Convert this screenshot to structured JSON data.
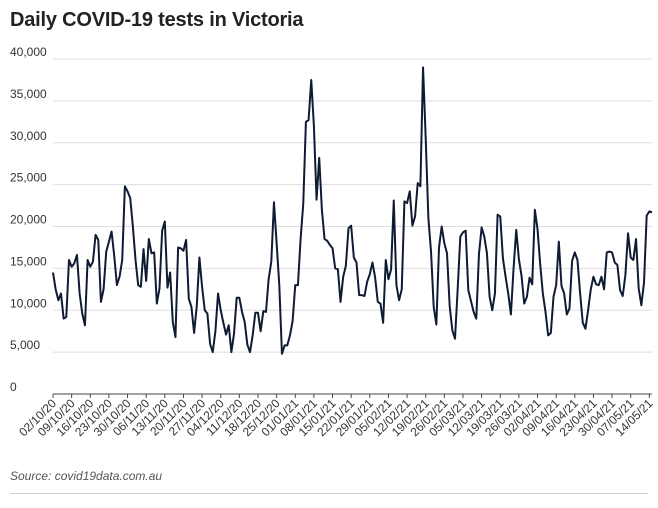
{
  "chart_data": {
    "type": "line",
    "title": "Daily COVID-19 tests in Victoria",
    "source": "Source: covid19data.com.au",
    "xlabel": "",
    "ylabel": "",
    "ylim": [
      0,
      40000
    ],
    "yticks": [
      {
        "value": 0,
        "label": "0"
      },
      {
        "value": 5000,
        "label": "5,000"
      },
      {
        "value": 10000,
        "label": "10,000"
      },
      {
        "value": 15000,
        "label": "15,000"
      },
      {
        "value": 20000,
        "label": "20,000"
      },
      {
        "value": 25000,
        "label": "25,000"
      },
      {
        "value": 30000,
        "label": "30,000"
      },
      {
        "value": 35000,
        "label": "35,000"
      },
      {
        "value": 40000,
        "label": "40,000"
      }
    ],
    "xticks": [
      "02/10/20",
      "09/10/20",
      "16/10/20",
      "23/10/20",
      "30/10/20",
      "06/11/20",
      "13/11/20",
      "20/11/20",
      "27/11/20",
      "04/12/20",
      "11/12/20",
      "18/12/20",
      "25/12/20",
      "01/01/21",
      "08/01/21",
      "15/01/21",
      "22/01/21",
      "29/01/21",
      "05/02/21",
      "12/02/21",
      "19/02/21",
      "26/02/21",
      "05/03/21",
      "12/03/21",
      "19/03/21",
      "26/03/21",
      "02/04/21",
      "09/04/21",
      "16/04/21",
      "23/04/21",
      "30/04/21",
      "07/05/21",
      "14/05/21"
    ],
    "grid": "horizontal",
    "color": "#0f1a33",
    "series": [
      {
        "values": [
          14500,
          12500,
          11200,
          12000,
          9000,
          9200,
          16000,
          15200,
          15600,
          16600,
          12000,
          9600,
          8200,
          16000,
          15200,
          15800,
          19000,
          18400,
          11000,
          12500,
          17000,
          18200,
          19400,
          16500,
          13000,
          14000,
          16000,
          24800,
          24200,
          23400,
          20000,
          16000,
          13000,
          12800,
          17300,
          13500,
          18500,
          16800,
          16900,
          10800,
          12600,
          19500,
          20600,
          12700,
          14500,
          8600,
          6800,
          17500,
          17400,
          17100,
          18400,
          11400,
          10400,
          7300,
          10500,
          16300,
          12800,
          10000,
          9600,
          6000,
          5000,
          7500,
          12000,
          10000,
          8500,
          7100,
          8200,
          5000,
          7200,
          11500,
          11500,
          9800,
          8600,
          5900,
          5000,
          7000,
          9700,
          9700,
          7500,
          9900,
          9800,
          13700,
          15800,
          22900,
          18000,
          13000,
          4800,
          5800,
          5800,
          7000,
          8700,
          13000,
          13000,
          18500,
          22700,
          32500,
          32700,
          37500,
          32000,
          23200,
          28200,
          22000,
          18500,
          18300,
          17800,
          17400,
          15000,
          14900,
          11000,
          14000,
          15300,
          19800,
          20100,
          16300,
          15700,
          11800,
          11800,
          11700,
          13400,
          14300,
          15700,
          13900,
          11000,
          10800,
          8500,
          16000,
          13700,
          14900,
          23100,
          13000,
          11200,
          12500,
          23000,
          22800,
          24200,
          20100,
          21200,
          25200,
          24800,
          39000,
          30500,
          21000,
          17000,
          10400,
          8300,
          17500,
          20000,
          18000,
          16800,
          10500,
          7600,
          6600,
          12500,
          18800,
          19300,
          19500,
          12400,
          11100,
          9800,
          9000,
          16700,
          19900,
          18800,
          16800,
          11600,
          10000,
          12000,
          21400,
          21200,
          16200,
          14000,
          12000,
          9500,
          15000,
          19600,
          16100,
          14100,
          10800,
          11600,
          13900,
          13100,
          22000,
          19700,
          15500,
          12000,
          9800,
          7000,
          7300,
          11600,
          13000,
          18200,
          12900,
          12000,
          9500,
          10200,
          15900,
          16900,
          16000,
          12000,
          8500,
          7800,
          10000,
          12500,
          14000,
          13100,
          13000,
          14000,
          12500,
          16900,
          17000,
          16900,
          15700,
          15400,
          12400,
          11700,
          14200,
          19200,
          16300,
          16000,
          18500,
          12600,
          10600,
          13300,
          21300,
          21800,
          21700
        ]
      }
    ]
  }
}
